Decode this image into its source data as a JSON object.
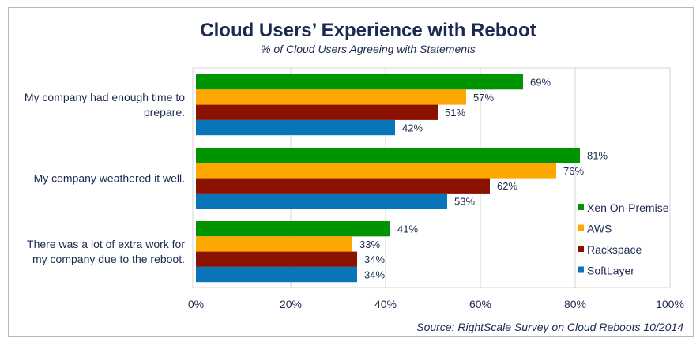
{
  "chart_data": {
    "type": "bar",
    "orientation": "horizontal",
    "title": "Cloud Users’ Experience with Reboot",
    "subtitle": "% of Cloud Users Agreeing with Statements",
    "source": "Source: RightScale Survey on Cloud Reboots 10/2014",
    "categories": [
      [
        "My company had enough time to",
        "prepare."
      ],
      [
        "My company weathered it well."
      ],
      [
        "There was a lot of extra work for",
        "my company due to the reboot."
      ]
    ],
    "series": [
      {
        "name": "Xen On-Premise",
        "color": "#009400",
        "values": [
          69,
          81,
          41
        ]
      },
      {
        "name": "AWS",
        "color": "#fca800",
        "values": [
          57,
          76,
          33
        ]
      },
      {
        "name": "Rackspace",
        "color": "#8c1200",
        "values": [
          51,
          62,
          34
        ]
      },
      {
        "name": "SoftLayer",
        "color": "#0a74b8",
        "values": [
          42,
          53,
          34
        ]
      }
    ],
    "value_labels": [
      [
        "69%",
        "81%",
        "41%"
      ],
      [
        "57%",
        "76%",
        "33%"
      ],
      [
        "51%",
        "62%",
        "34%"
      ],
      [
        "42%",
        "53%",
        "34%"
      ]
    ],
    "xlim": [
      0,
      100
    ],
    "x_ticks": [
      "0%",
      "20%",
      "40%",
      "60%",
      "80%",
      "100%"
    ],
    "grid": true,
    "legend_position": "right"
  }
}
